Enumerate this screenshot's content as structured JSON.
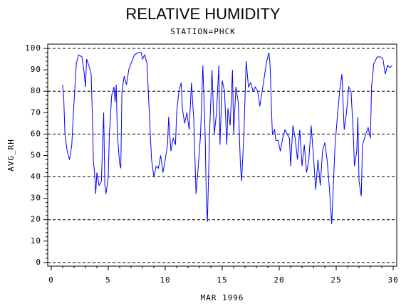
{
  "chart_data": {
    "type": "line",
    "title": "RELATIVE HUMIDITY",
    "subtitle": "STATION=PHCK",
    "x_label": "MAR 1996",
    "y_label": "AVG_RH",
    "xlim": [
      -0.31,
      30.31
    ],
    "ylim": [
      -1.7,
      102
    ],
    "xticks": [
      0,
      5,
      10,
      15,
      20,
      25,
      30
    ],
    "yticks": [
      0,
      10,
      20,
      30,
      40,
      50,
      60,
      70,
      80,
      90,
      100
    ],
    "grid_lines": [
      0,
      20,
      40,
      60,
      80,
      100
    ],
    "series": [
      {
        "name": "AVG_RH",
        "color": "#0000ff",
        "x": [
          1.0,
          1.1,
          1.2,
          1.4,
          1.6,
          1.8,
          2.0,
          2.2,
          2.4,
          2.7,
          2.9,
          3.0,
          3.1,
          3.3,
          3.5,
          3.6,
          3.7,
          3.8,
          3.9,
          4.0,
          4.2,
          4.4,
          4.5,
          4.6,
          4.7,
          4.8,
          5.0,
          5.1,
          5.3,
          5.5,
          5.6,
          5.7,
          5.8,
          6.0,
          6.1,
          6.2,
          6.4,
          6.6,
          6.8,
          7.0,
          7.3,
          7.6,
          7.9,
          8.0,
          8.2,
          8.4,
          8.6,
          8.8,
          9.0,
          9.2,
          9.4,
          9.6,
          9.8,
          10.0,
          10.2,
          10.3,
          10.5,
          10.7,
          10.9,
          11.0,
          11.2,
          11.4,
          11.5,
          11.7,
          11.9,
          12.1,
          12.3,
          12.5,
          12.6,
          12.7,
          12.9,
          13.1,
          13.3,
          13.5,
          13.6,
          13.7,
          13.9,
          14.1,
          14.3,
          14.5,
          14.7,
          14.8,
          15.0,
          15.2,
          15.4,
          15.5,
          15.7,
          15.9,
          16.0,
          16.2,
          16.4,
          16.6,
          16.7,
          16.9,
          17.1,
          17.3,
          17.5,
          17.7,
          17.9,
          18.1,
          18.3,
          18.5,
          18.7,
          18.9,
          19.1,
          19.2,
          19.3,
          19.4,
          19.6,
          19.7,
          19.9,
          20.1,
          20.3,
          20.5,
          20.7,
          20.9,
          21.0,
          21.2,
          21.4,
          21.6,
          21.8,
          22.0,
          22.2,
          22.4,
          22.6,
          22.8,
          23.0,
          23.2,
          23.4,
          23.6,
          23.8,
          24.0,
          24.2,
          24.4,
          24.6,
          24.7,
          24.9,
          25.1,
          25.3,
          25.5,
          25.7,
          25.9,
          26.1,
          26.3,
          26.5,
          26.6,
          26.8,
          26.9,
          27.0,
          27.2,
          27.3,
          27.6,
          27.8,
          28.0,
          28.1,
          28.3,
          28.6,
          28.9,
          29.1,
          29.3,
          29.5,
          29.7,
          29.9
        ],
        "values": [
          83,
          76,
          60,
          52,
          48,
          55,
          75,
          93,
          97,
          96,
          88,
          82,
          95,
          92,
          88,
          70,
          47,
          42,
          32,
          42,
          36,
          38,
          55,
          70,
          36,
          32,
          40,
          60,
          78,
          82,
          75,
          83,
          60,
          46,
          44,
          80,
          87,
          83,
          90,
          93,
          97,
          98,
          98,
          95,
          97,
          93,
          70,
          48,
          40,
          45,
          44,
          50,
          42,
          48,
          55,
          68,
          52,
          58,
          55,
          70,
          80,
          84,
          72,
          65,
          70,
          62,
          84,
          67,
          50,
          32,
          45,
          60,
          92,
          60,
          30,
          19,
          62,
          90,
          60,
          70,
          92,
          55,
          85,
          80,
          55,
          72,
          64,
          90,
          60,
          82,
          75,
          45,
          38,
          60,
          94,
          82,
          84,
          80,
          82,
          80,
          73,
          80,
          87,
          94,
          98,
          92,
          75,
          60,
          62,
          57,
          57,
          52,
          58,
          62,
          60,
          58,
          45,
          64,
          58,
          48,
          62,
          45,
          55,
          42,
          48,
          64,
          50,
          34,
          48,
          36,
          52,
          56,
          48,
          35,
          18,
          30,
          55,
          68,
          80,
          88,
          62,
          70,
          82,
          80,
          60,
          45,
          52,
          68,
          38,
          31,
          55,
          60,
          63,
          58,
          82,
          93,
          96,
          96,
          95,
          88,
          92,
          91,
          92
        ]
      }
    ]
  }
}
